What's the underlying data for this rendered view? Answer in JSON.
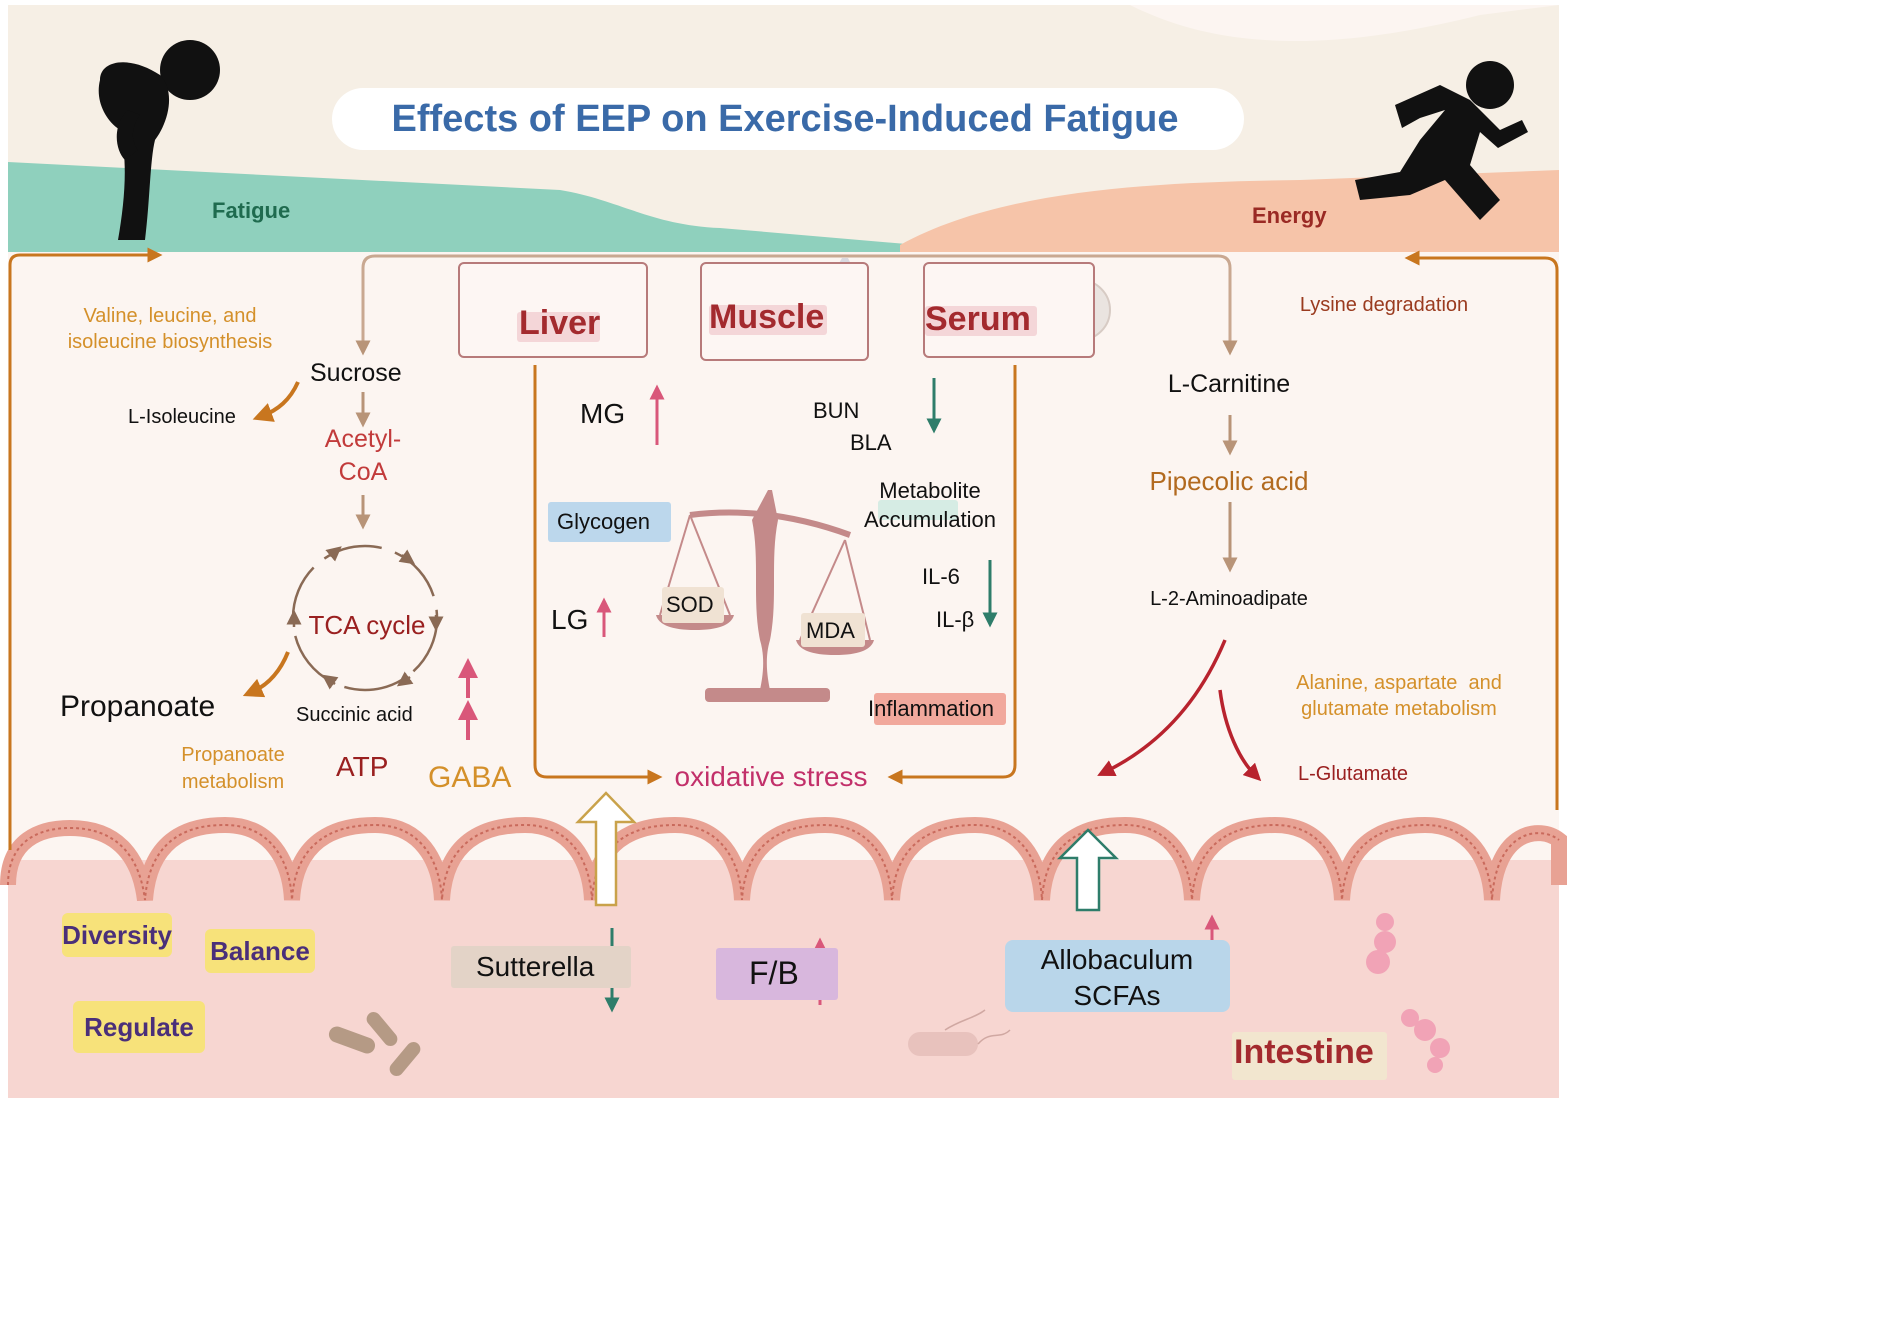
{
  "title": "Effects of EEP on Exercise-Induced Fatigue",
  "header": {
    "fatigue": "Fatigue",
    "energy": "Energy"
  },
  "organs": {
    "liver": "Liver",
    "muscle": "Muscle",
    "serum": "Serum"
  },
  "left_pathway": {
    "bcaa": "Valine, leucine, and\nisoleucine biosynthesis",
    "sucrose": "Sucrose",
    "l_isoleucine": "L-Isoleucine",
    "acetyl_coa": "Acetyl-\nCoA",
    "tca_cycle": "TCA cycle",
    "propanoate": "Propanoate",
    "succinic_acid": "Succinic acid",
    "propanoate_metabolism": "Propanoate\nmetabolism",
    "atp": "ATP",
    "gaba": "GABA"
  },
  "center": {
    "mg": "MG",
    "lg": "LG",
    "glycogen": "Glycogen",
    "bun": "BUN",
    "bla": "BLA",
    "metabolite_accumulation": "Metabolite\nAccumulation",
    "il6": "IL-6",
    "ilb": "IL-β",
    "sod": "SOD",
    "mda": "MDA",
    "inflammation": "Inflammation",
    "oxidative_stress": "oxidative stress"
  },
  "right_pathway": {
    "lysine_degradation": "Lysine degradation",
    "l_carnitine": "L-Carnitine",
    "pipecolic_acid": "Pipecolic acid",
    "l_2_aminoadipate": "L-2-Aminoadipate",
    "ala_asp_glu": "Alanine, aspartate  and\nglutamate metabolism",
    "l_glutamate": "L-Glutamate"
  },
  "intestine": {
    "diversity": "Diversity",
    "balance": "Balance",
    "regulate": "Regulate",
    "sutterella": "Sutterella",
    "fb": "F/B",
    "allobaculum": "Allobaculum\nSCFAs",
    "intestine_label": "Intestine"
  },
  "colors": {
    "title": "#3a6aa8",
    "teal_band": "#8fd0bd",
    "salmon_band": "#f6c4a9",
    "organ_text": "#a32a2e",
    "orange_text": "#d4902a",
    "arrow_up": "#d9577a",
    "arrow_down": "#2e7d6a",
    "gut_tag": "#f7e27a",
    "gut_text": "#4a2f7a"
  }
}
